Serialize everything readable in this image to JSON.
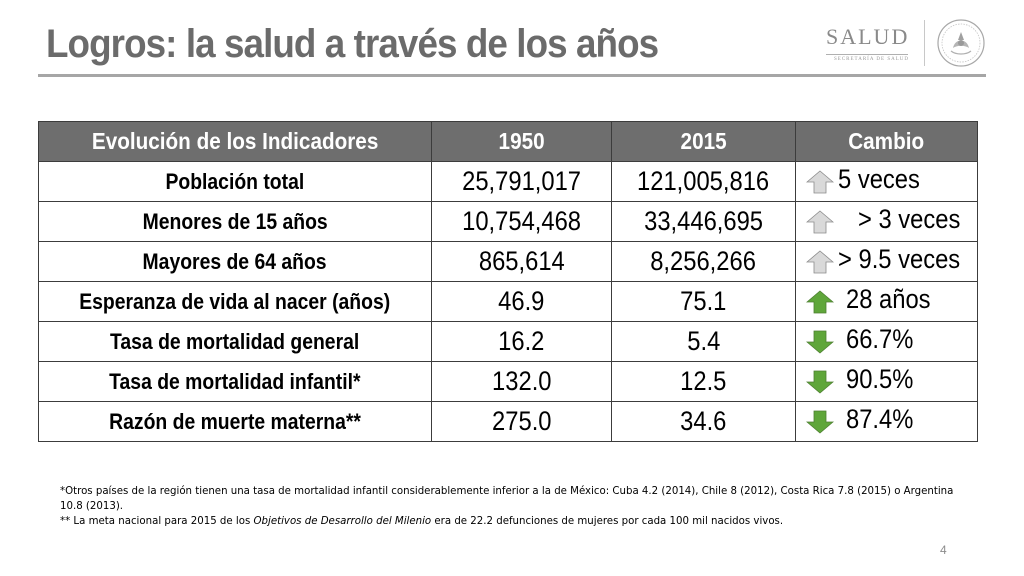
{
  "slide": {
    "title": "Logros: la salud a través de los años",
    "page_number": "4"
  },
  "logo": {
    "name": "SALUD",
    "subtitle": "SECRETARÍA DE SALUD"
  },
  "table": {
    "headers": [
      "Evolución de los Indicadores",
      "1950",
      "2015",
      "Cambio"
    ],
    "rows": [
      {
        "indicator": "Población total",
        "v1950": "25,791,017",
        "v2015": "121,005,816",
        "change": "5 veces",
        "trend": "up",
        "arrow_color": "#d9d9d9"
      },
      {
        "indicator": "Menores de 15 años",
        "v1950": "10,754,468",
        "v2015": "33,446,695",
        "change": "> 3 veces",
        "trend": "up",
        "arrow_color": "#d9d9d9"
      },
      {
        "indicator": "Mayores de 64 años",
        "v1950": "865,614",
        "v2015": "8,256,266",
        "change": "> 9.5 veces",
        "trend": "up",
        "arrow_color": "#d9d9d9"
      },
      {
        "indicator": "Esperanza de vida al nacer (años)",
        "v1950": "46.9",
        "v2015": "75.1",
        "change": "28 años",
        "trend": "up",
        "arrow_color": "#5fa63a"
      },
      {
        "indicator": "Tasa de mortalidad general",
        "v1950": "16.2",
        "v2015": "5.4",
        "change": "66.7%",
        "trend": "down",
        "arrow_color": "#5fa63a"
      },
      {
        "indicator": "Tasa de mortalidad infantil*",
        "v1950": "132.0",
        "v2015": "12.5",
        "change": "90.5%",
        "trend": "down",
        "arrow_color": "#5fa63a"
      },
      {
        "indicator": "Razón de muerte materna**",
        "v1950": "275.0",
        "v2015": "34.6",
        "change": "87.4%",
        "trend": "down",
        "arrow_color": "#5fa63a"
      }
    ]
  },
  "notes": {
    "note1": "*Otros países de la región tienen una tasa de mortalidad infantil considerablemente inferior a la de México: Cuba 4.2 (2014), Chile 8 (2012), Costa Rica 7.8 (2015) o Argentina 10.8 (2013).",
    "note2_prefix": "** La meta nacional para 2015 de los ",
    "note2_italic": "Objetivos de Desarrollo del Milenio",
    "note2_suffix": " era de 22.2 defunciones de mujeres por cada 100 mil nacidos vivos."
  },
  "colors": {
    "header_bg": "#6e6e6e",
    "title": "#6b6b6b",
    "arrow_neutral": "#d9d9d9",
    "arrow_good": "#5fa63a"
  }
}
